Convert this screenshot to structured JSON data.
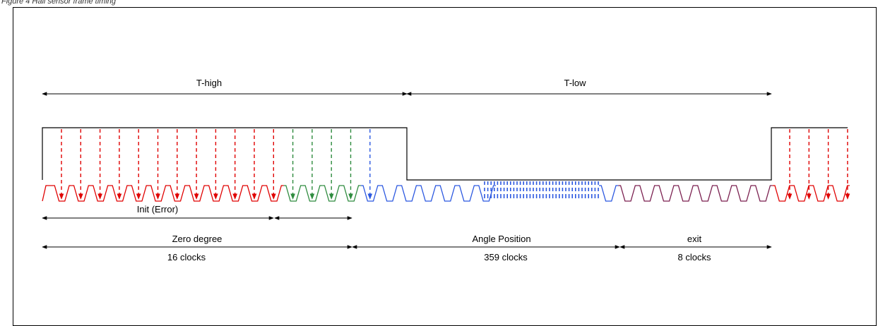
{
  "caption": "Figure 4 Hall sensor frame timing",
  "labels": {
    "t_high": "T-high",
    "t_low": "T-low",
    "init_error": "Init (Error)",
    "zero_degree": "Zero degree",
    "zero_degree_clocks": "16 clocks",
    "angle_position": "Angle Position",
    "angle_position_clocks": "359 clocks",
    "exit": "exit",
    "exit_clocks": "8 clocks"
  },
  "colors": {
    "init": "#e00000",
    "zero_degree": "#2e8b3e",
    "angle_position": "#2a57e0",
    "exit": "#7a1f4f",
    "outline": "#000000"
  }
}
